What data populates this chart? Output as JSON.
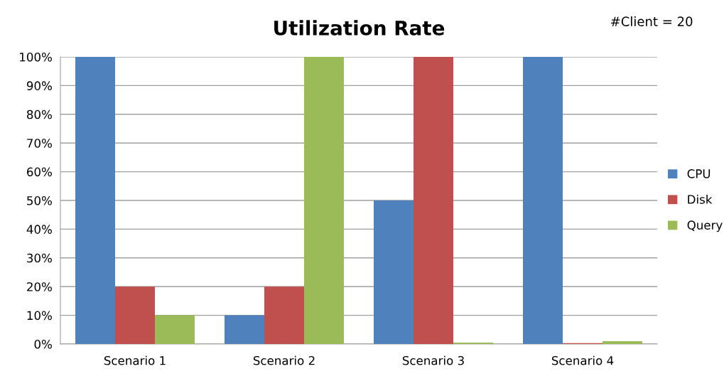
{
  "chart_data": {
    "type": "bar",
    "title": "Utilization Rate",
    "annotations": [
      "#Client = 20"
    ],
    "categories": [
      "Scenario 1",
      "Scenario 2",
      "Scenario 3",
      "Scenario 4"
    ],
    "series": [
      {
        "name": "CPU",
        "color": "#4f81bd",
        "values": [
          100,
          10,
          50,
          100
        ]
      },
      {
        "name": "Disk",
        "color": "#c0504d",
        "values": [
          20,
          20,
          100,
          0.3
        ]
      },
      {
        "name": "Query",
        "color": "#9bbb59",
        "values": [
          10,
          100,
          0.5,
          1
        ]
      }
    ],
    "ylim": [
      0,
      100
    ],
    "yticks": [
      {
        "value": 0,
        "label": "0%"
      },
      {
        "value": 10,
        "label": "10%"
      },
      {
        "value": 20,
        "label": "20%"
      },
      {
        "value": 30,
        "label": "30%"
      },
      {
        "value": 40,
        "label": "40%"
      },
      {
        "value": 50,
        "label": "50%"
      },
      {
        "value": 60,
        "label": "60%"
      },
      {
        "value": 70,
        "label": "70%"
      },
      {
        "value": 80,
        "label": "80%"
      },
      {
        "value": 90,
        "label": "90%"
      },
      {
        "value": 100,
        "label": "100%"
      }
    ],
    "grid": "y",
    "legend": "right"
  }
}
